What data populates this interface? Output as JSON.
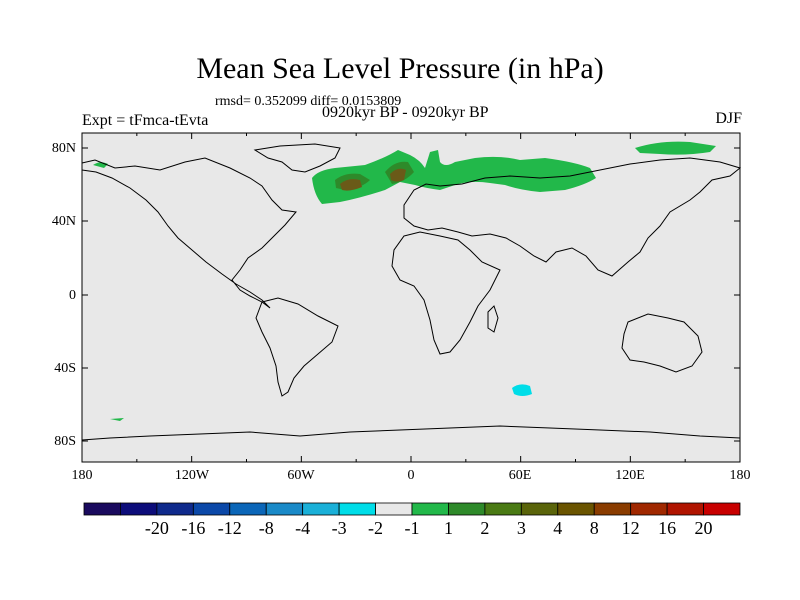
{
  "header": {
    "title": "Mean Sea Level Pressure (in hPa)",
    "stats": "rmsd= 0.352099 diff= 0.0153809",
    "experiment": "Expt = tFmca-tEvta",
    "period": "0920kyr BP - 0920kyr BP",
    "season": "DJF"
  },
  "axes": {
    "lat_ticks": [
      "80N",
      "40N",
      "0",
      "40S",
      "80S"
    ],
    "lon_ticks": [
      "180",
      "120W",
      "60W",
      "0",
      "60E",
      "120E",
      "180"
    ]
  },
  "colorbar": {
    "colors": [
      "#1a0a5e",
      "#0d0d7a",
      "#0f2a8c",
      "#0b48a8",
      "#0b66b8",
      "#1a8ac8",
      "#1ab0d8",
      "#00dde8",
      "#e8e8e8",
      "#22b84a",
      "#2e8a2a",
      "#4a7a14",
      "#5a640a",
      "#6a5400",
      "#8a3c00",
      "#a02800",
      "#b01400",
      "#c80000"
    ],
    "labels": [
      "-20",
      "-16",
      "-12",
      "-8",
      "-4",
      "-3",
      "-2",
      "-1",
      "1",
      "2",
      "3",
      "4",
      "8",
      "12",
      "16",
      "20"
    ]
  },
  "map_colors": {
    "background": "#e8e8e8",
    "positive_light": "#22b84a",
    "positive_mid": "#2e8a2a",
    "positive_dark": "#6a5a18",
    "negative_light": "#00dde8",
    "coast": "#000000"
  }
}
